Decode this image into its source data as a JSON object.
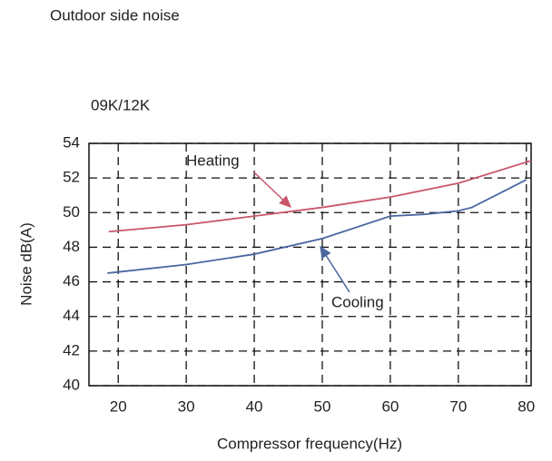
{
  "chart_data": {
    "type": "line",
    "title": "Outdoor side noise",
    "subtitle": "09K/12K",
    "x_label": "Compressor frequency(Hz)",
    "y_label": "Noise dB(A)",
    "series": [
      {
        "name": "Heating",
        "color": "#c9566b",
        "x": [
          18.6,
          30,
          40,
          50,
          60,
          70,
          80.7
        ],
        "values": [
          48.9,
          49.3,
          49.8,
          50.3,
          50.9,
          51.7,
          53.0
        ]
      },
      {
        "name": "Cooling",
        "color": "#4a66a0",
        "x": [
          18.4,
          30,
          40,
          50,
          60,
          65,
          70,
          72,
          80
        ],
        "values": [
          46.5,
          47.0,
          47.6,
          48.5,
          49.8,
          49.9,
          50.1,
          50.3,
          51.9
        ]
      }
    ],
    "xlim": [
      15.7,
      80.7
    ],
    "xticks": [
      20,
      30,
      40,
      50,
      60,
      70,
      80
    ],
    "ylim": [
      40,
      54
    ],
    "yticks": [
      40,
      42,
      44,
      46,
      48,
      50,
      52,
      54
    ],
    "grid": true
  }
}
